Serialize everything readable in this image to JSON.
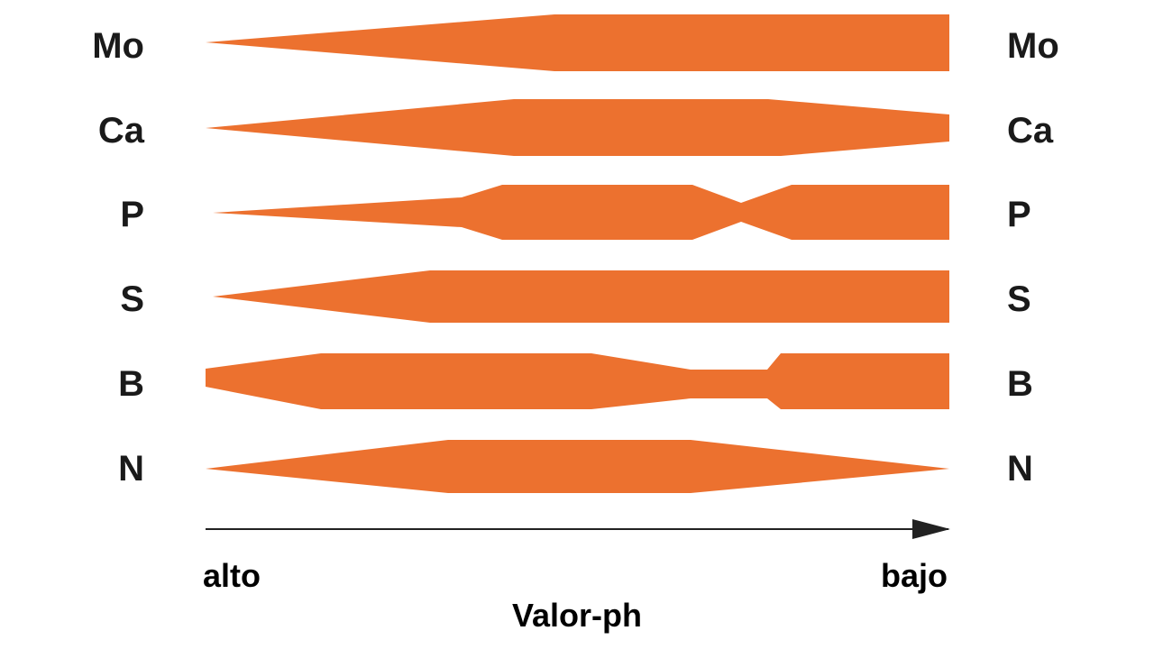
{
  "colors": {
    "band": "#ec712f",
    "label": "#1a1a1a",
    "axis": "#222222"
  },
  "nutrients": [
    {
      "id": "mo",
      "label": "Mo"
    },
    {
      "id": "ca",
      "label": "Ca"
    },
    {
      "id": "p",
      "label": "P"
    },
    {
      "id": "s",
      "label": "S"
    },
    {
      "id": "b",
      "label": "B"
    },
    {
      "id": "n",
      "label": "N"
    }
  ],
  "axis": {
    "start_label": "alto",
    "end_label": "bajo",
    "title": "Valor-ph"
  }
}
